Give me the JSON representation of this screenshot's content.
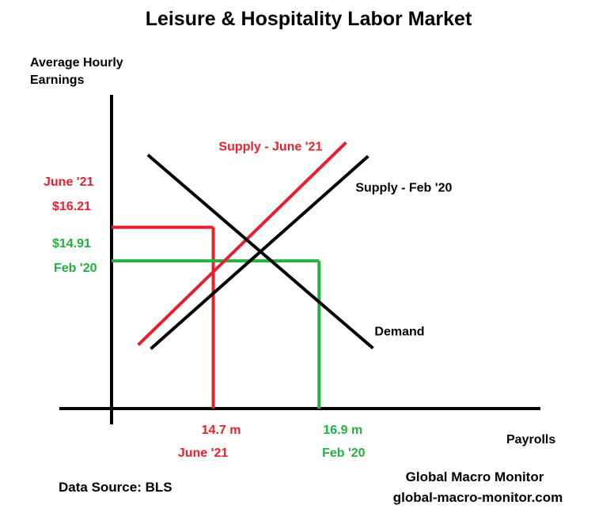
{
  "chart_data": {
    "type": "line",
    "title": "Leisure & Hospitality Labor Market",
    "ylabel_line1": "Average Hourly",
    "ylabel_line2": "Earnings",
    "xlabel": "Payrolls",
    "colors": {
      "red": "#e8202a",
      "green": "#22b140",
      "black": "#000000"
    },
    "series": [
      {
        "name": "Supply - June '21",
        "color": "#e8202a",
        "x": [
          13.14,
          17.46
        ],
        "y": [
          11.65,
          19.5
        ]
      },
      {
        "name": "Supply - Feb '20",
        "color": "#000000",
        "x": [
          13.4,
          17.92
        ],
        "y": [
          11.5,
          18.97
        ]
      },
      {
        "name": "Demand",
        "color": "#000000",
        "x": [
          13.34,
          18.02
        ],
        "y": [
          19.02,
          11.52
        ]
      }
    ],
    "equilibria": [
      {
        "period": "June '21",
        "wage": 16.21,
        "payrolls": 14.7,
        "color": "#e8202a",
        "wage_label": "$16.21",
        "wage_period_label": "June '21",
        "payroll_label": "14.7 m",
        "payroll_period_label": "June '21"
      },
      {
        "period": "Feb '20",
        "wage": 14.91,
        "payrolls": 16.9,
        "color": "#22b140",
        "wage_label": "$14.91",
        "wage_period_label": "Feb '20",
        "payroll_label": "16.9 m",
        "payroll_period_label": "Feb '20"
      }
    ],
    "xlim": [
      11.5,
      21.5
    ],
    "ylim": [
      9.18,
      21.35
    ],
    "grid": false,
    "legend": "none"
  },
  "footer": {
    "source": "Data Source:  BLS",
    "brand": "Global Macro Monitor",
    "url": "global-macro-monitor.com"
  }
}
